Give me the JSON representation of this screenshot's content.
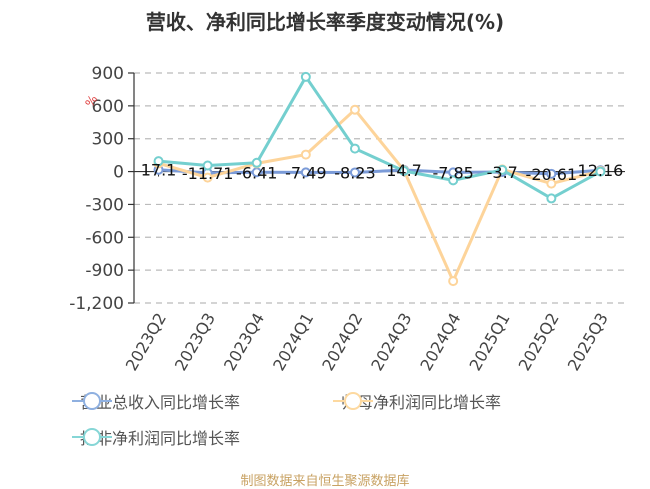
{
  "title": "营收、净利同比增长率季度变动情况(%)",
  "footer": "制图数据来自恒生聚源数据库",
  "y_unit": "%",
  "colors": {
    "revenue": "#7b9bd8",
    "net_profit": "#fdd49a",
    "deducted_net_profit": "#74cfcf",
    "unit_label": "#e04040",
    "grid": "#bbbbbb",
    "axis": "#333333",
    "tick_text": "#444444",
    "label_text": "#111111"
  },
  "legend": [
    {
      "label": "营业总收入同比增长率",
      "color": "#8fb0e0"
    },
    {
      "label": "归母净利润同比增长率",
      "color": "#fdd9a0"
    },
    {
      "label": "扣非净利润同比增长率",
      "color": "#86d6d6"
    }
  ],
  "chart_data": {
    "type": "line",
    "title": "营收、净利同比增长率季度变动情况(%)",
    "xlabel": "",
    "ylabel": "%",
    "ylim": [
      -1200,
      900
    ],
    "yticks": [
      900,
      600,
      300,
      0,
      -300,
      -600,
      -900,
      -1200
    ],
    "ytick_labels": [
      "900",
      "600",
      "300",
      "0",
      "-300",
      "-600",
      "-900",
      "-1,200"
    ],
    "grid": true,
    "legend_position": "bottom",
    "categories": [
      "2023Q2",
      "2023Q3",
      "2023Q4",
      "2024Q1",
      "2024Q2",
      "2024Q3",
      "2024Q4",
      "2025Q1",
      "2025Q2",
      "2025Q3"
    ],
    "series": [
      {
        "name": "营业总收入同比增长率",
        "values": [
          17.1,
          -11.71,
          -6.41,
          -7.49,
          -8.23,
          14.7,
          -7.85,
          -3.7,
          -20.61,
          12.16
        ],
        "data_labels": [
          "17.1",
          "-11.71",
          "-6.41",
          "-7.49",
          "-8.23",
          "14.7",
          "-7.85",
          "-3.7",
          "-20.61",
          "12.16"
        ]
      },
      {
        "name": "归母净利润同比增长率",
        "values": [
          75,
          -55,
          75,
          155,
          565,
          10,
          -1000,
          20,
          -110,
          5
        ]
      },
      {
        "name": "扣非净利润同比增长率",
        "values": [
          95,
          55,
          80,
          865,
          210,
          5,
          -80,
          15,
          -245,
          0
        ]
      }
    ]
  }
}
